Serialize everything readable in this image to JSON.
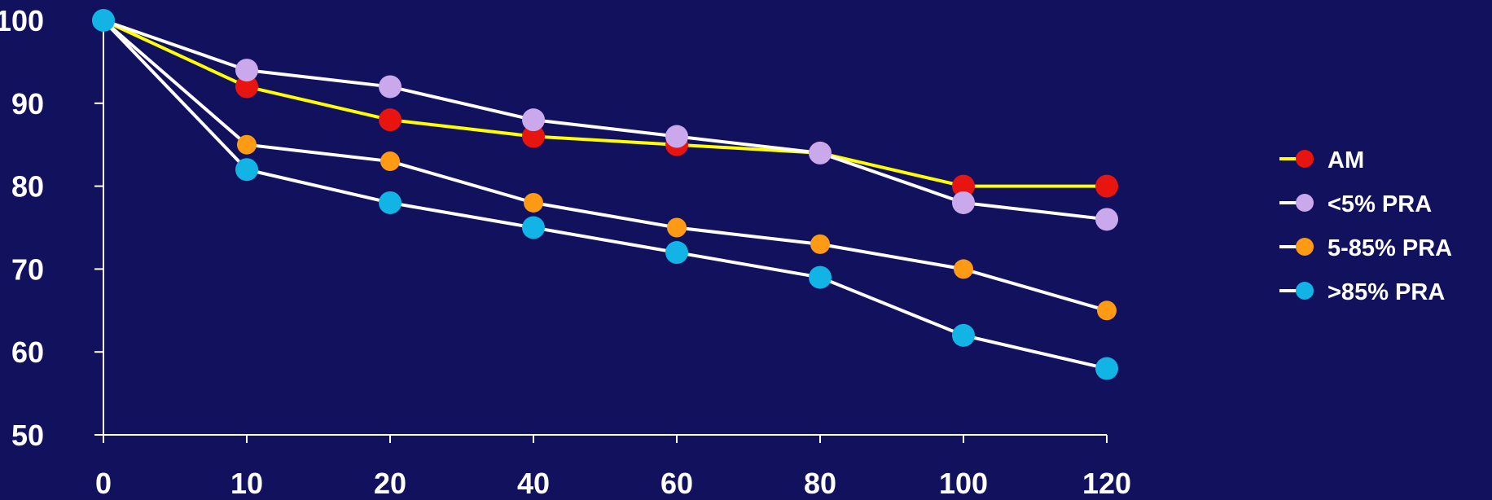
{
  "chart_data": {
    "type": "line",
    "categories": [
      "0",
      "10",
      "20",
      "40",
      "60",
      "80",
      "100",
      "120"
    ],
    "ylim": [
      50,
      100
    ],
    "yticks": [
      50,
      60,
      70,
      80,
      90,
      100
    ],
    "title": "",
    "xlabel": "",
    "ylabel": "",
    "grid": false,
    "legend_position": "right",
    "series": [
      {
        "name": "AM",
        "line_color": "#ffff00",
        "marker_color": "#e8140f",
        "values": [
          100,
          92,
          88,
          86,
          85,
          84,
          80,
          80
        ]
      },
      {
        "name": "<5% PRA",
        "line_color": "#ffffff",
        "marker_color": "#c9a8ec",
        "values": [
          100,
          94,
          92,
          88,
          86,
          84,
          78,
          76
        ]
      },
      {
        "name": "5-85% PRA",
        "line_color": "#ffffff",
        "marker_color": "#ff9a14",
        "values": [
          100,
          85,
          83,
          78,
          75,
          73,
          70,
          65
        ]
      },
      {
        "name": ">85% PRA",
        "line_color": "#ffffff",
        "marker_color": "#12b4e6",
        "values": [
          100,
          82,
          78,
          75,
          72,
          69,
          62,
          58
        ]
      }
    ]
  }
}
